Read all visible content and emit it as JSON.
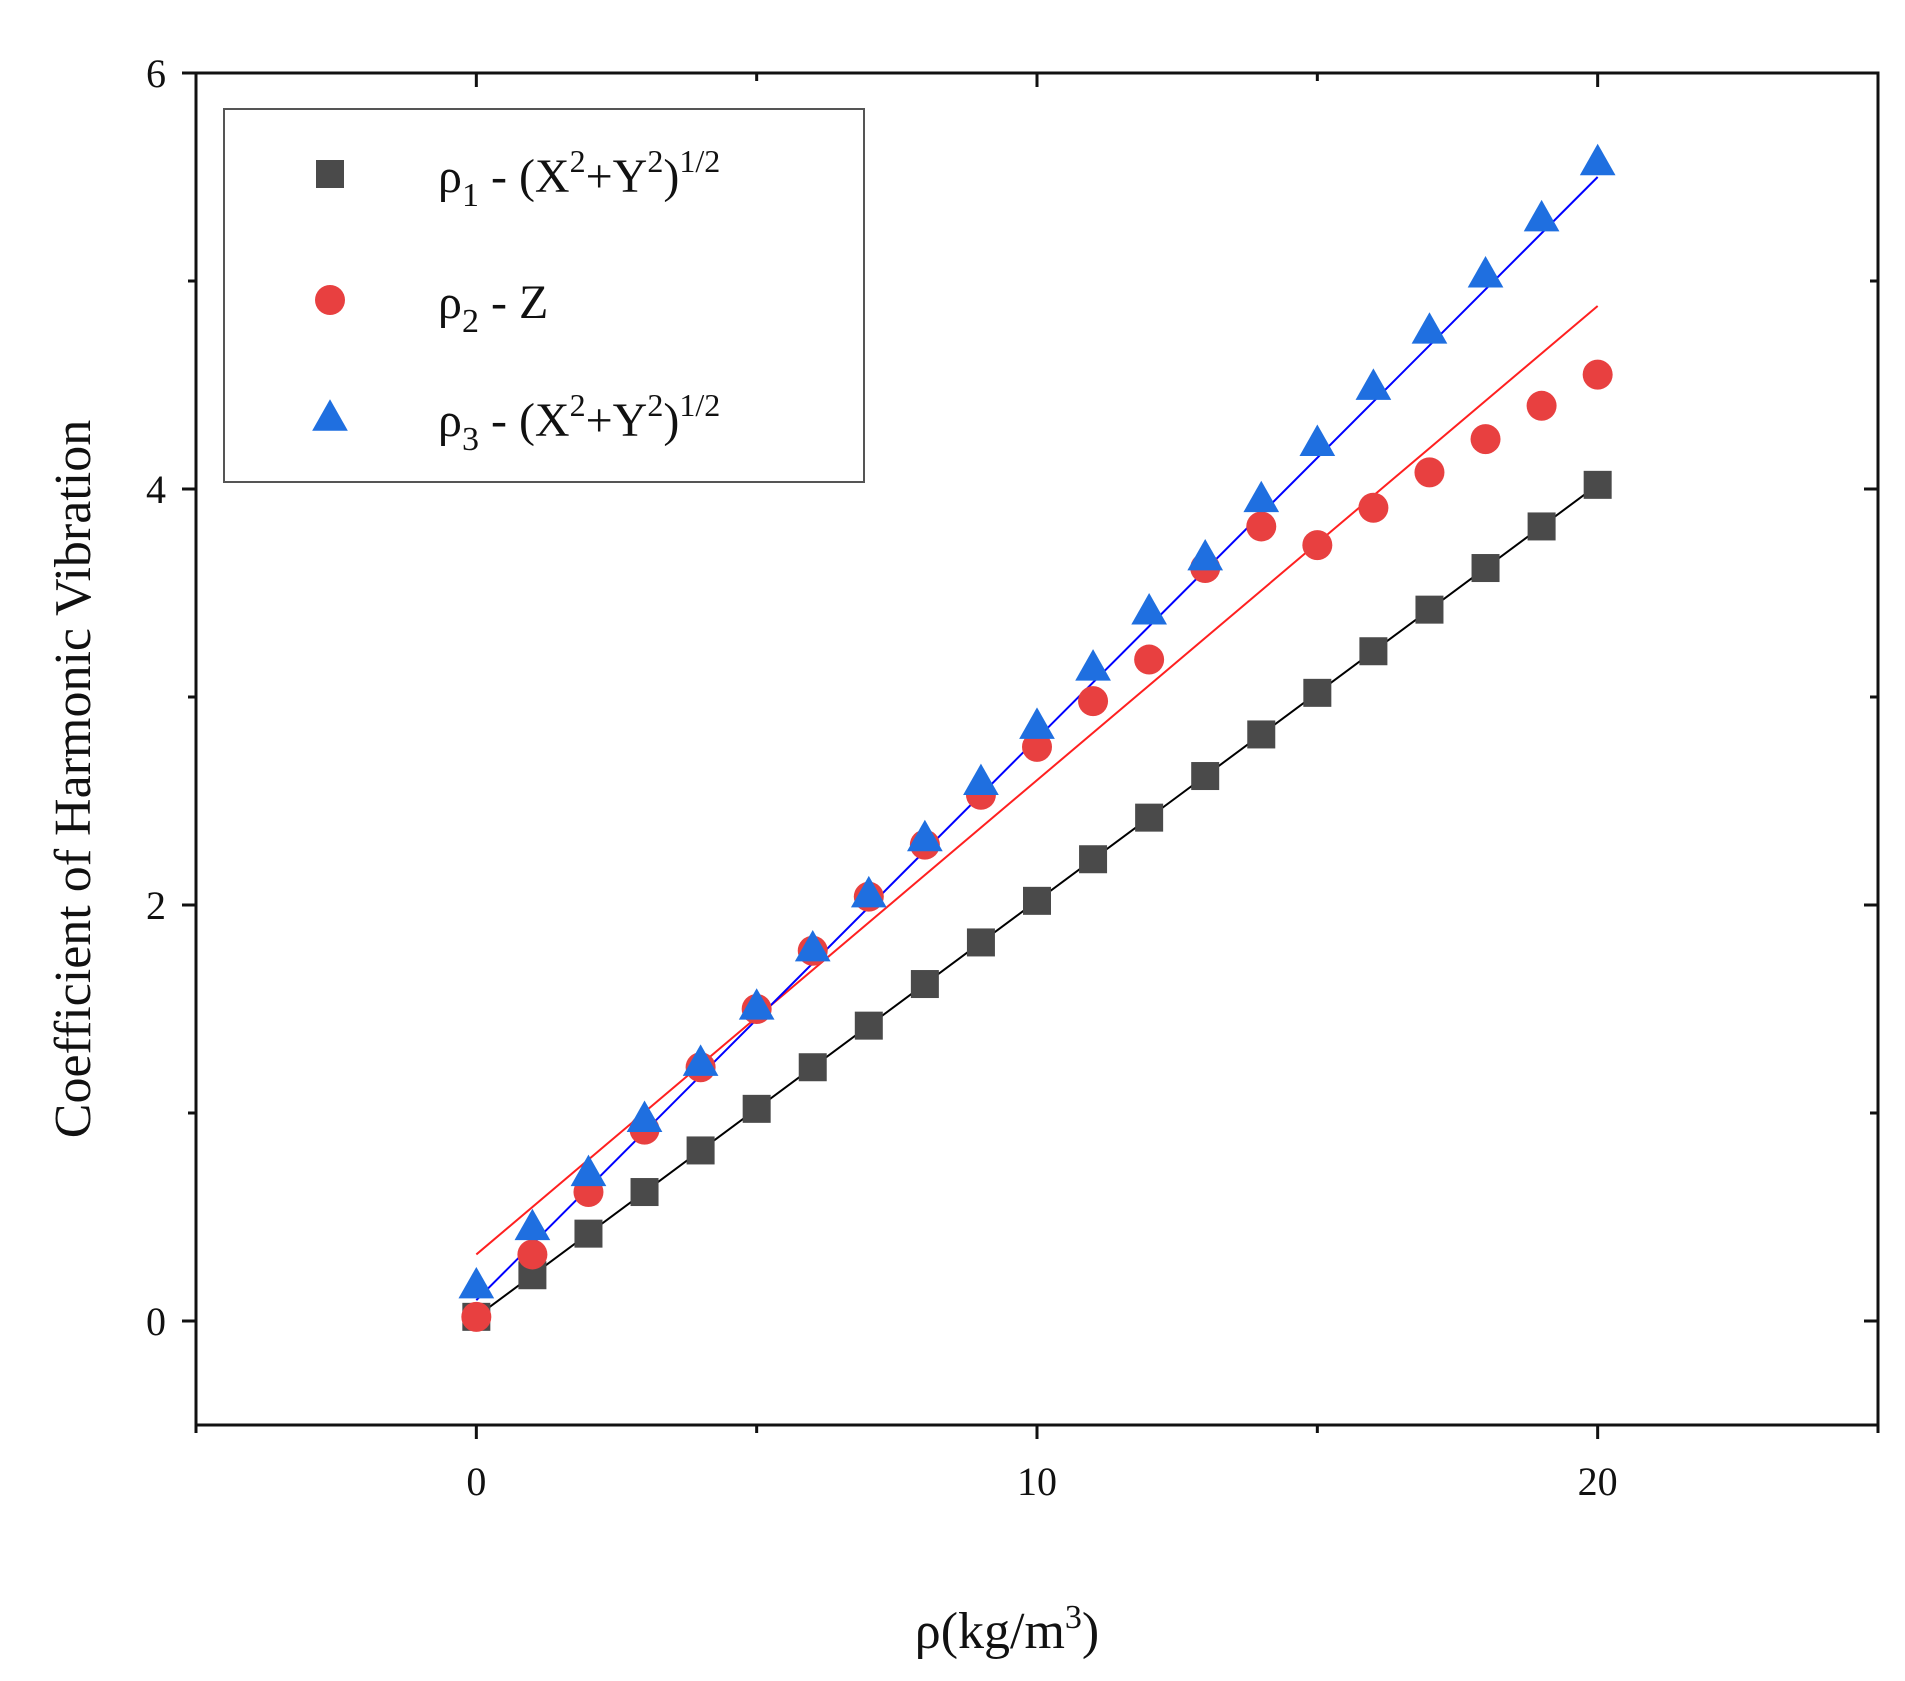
{
  "chart_data": {
    "type": "scatter",
    "title": "",
    "xlabel": "ρ(kg/m3)",
    "ylabel": "Coefficient of Harmonic Vibration",
    "xlim": [
      -5,
      25
    ],
    "ylim": [
      -0.5,
      6
    ],
    "x_ticks": [
      {
        "value": 0,
        "label": "0"
      },
      {
        "value": 10,
        "label": "10"
      },
      {
        "value": 20,
        "label": "20"
      }
    ],
    "x_minor_ticks": [
      -5,
      5,
      15,
      25
    ],
    "y_ticks": [
      {
        "value": 0,
        "label": "0"
      },
      {
        "value": 2,
        "label": "2"
      },
      {
        "value": 4,
        "label": "4"
      },
      {
        "value": 6,
        "label": "6"
      }
    ],
    "y_minor_ticks": [
      1,
      3,
      5
    ],
    "grid": false,
    "legend_position": "top-left",
    "x": [
      0,
      1,
      2,
      3,
      4,
      5,
      6,
      7,
      8,
      9,
      10,
      11,
      12,
      13,
      14,
      15,
      16,
      17,
      18,
      19,
      20
    ],
    "series": [
      {
        "name": "ρ1 - (X2+Y2)1/2",
        "legend": {
          "base": "ρ",
          "sub": "1",
          "text": " - (X",
          "sup1": "2",
          "mid": "+Y",
          "sup2": "2",
          "close": ")",
          "sup3": "1/2"
        },
        "marker": "square",
        "color": "#4a4a4a",
        "fit_color": "#000000",
        "values": [
          0.02,
          0.22,
          0.42,
          0.62,
          0.82,
          1.02,
          1.22,
          1.42,
          1.62,
          1.82,
          2.02,
          2.22,
          2.42,
          2.62,
          2.82,
          3.02,
          3.22,
          3.42,
          3.62,
          3.82,
          4.02
        ],
        "fit": {
          "slope": 0.2,
          "intercept": 0.02,
          "x_range": [
            0,
            20
          ]
        }
      },
      {
        "name": "ρ2 - Z",
        "legend": {
          "base": "ρ",
          "sub": "2",
          "text": " - Z"
        },
        "marker": "circle",
        "color": "#e84040",
        "fit_color": "#ff2020",
        "values": [
          0.02,
          0.32,
          0.62,
          0.92,
          1.22,
          1.5,
          1.78,
          2.04,
          2.29,
          2.53,
          2.76,
          2.98,
          3.18,
          3.62,
          3.82,
          3.73,
          3.91,
          4.08,
          4.24,
          4.4,
          4.55
        ],
        "fit": {
          "slope": 0.228,
          "intercept": 0.32,
          "x_range": [
            0,
            20
          ]
        }
      },
      {
        "name": "ρ3 - (X2+Y2)1/2",
        "legend": {
          "base": "ρ",
          "sub": "3",
          "text": " - (X",
          "sup1": "2",
          "mid": "+Y",
          "sup2": "2",
          "close": ")",
          "sup3": "1/2"
        },
        "marker": "triangle",
        "color": "#1f6fe0",
        "fit_color": "#0000ff",
        "values": [
          0.17,
          0.45,
          0.71,
          0.97,
          1.24,
          1.51,
          1.79,
          2.05,
          2.32,
          2.59,
          2.86,
          3.14,
          3.41,
          3.67,
          3.95,
          4.22,
          4.49,
          4.76,
          5.03,
          5.3,
          5.57
        ],
        "fit": {
          "slope": 0.27,
          "intercept": 0.1,
          "x_range": [
            0,
            20
          ]
        }
      }
    ]
  }
}
